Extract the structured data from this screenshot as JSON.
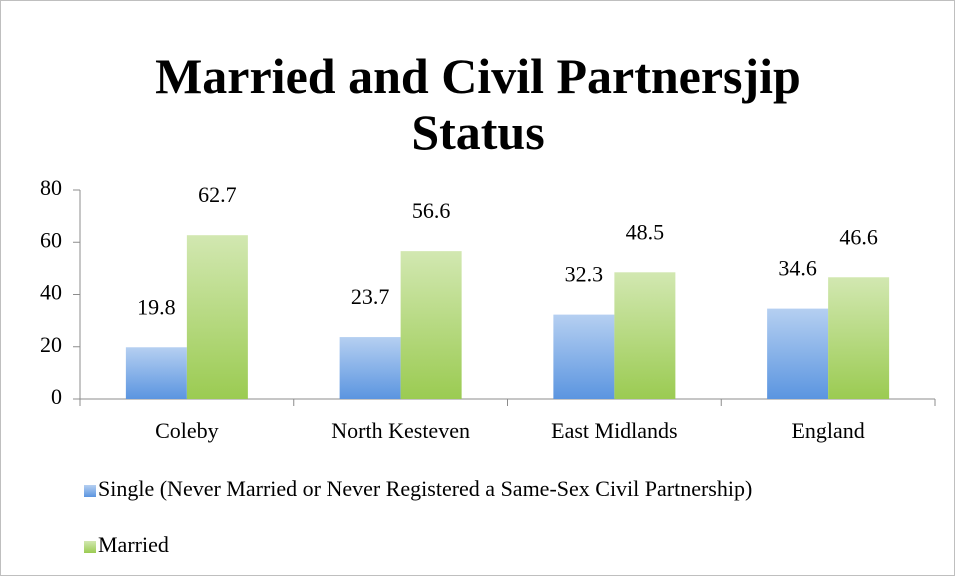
{
  "chart_data": {
    "type": "bar",
    "title": "Married and Civil Partnersjip Status",
    "categories": [
      "Coleby",
      "North Kesteven",
      "East Midlands",
      "England"
    ],
    "series": [
      {
        "name": "Single (Never Married or Never Registered a Same-Sex Civil Partnership)",
        "color": "#5b95e0",
        "values": [
          19.8,
          23.7,
          32.3,
          34.6
        ]
      },
      {
        "name": "Married",
        "color": "#9bcb52",
        "values": [
          62.7,
          56.6,
          48.5,
          46.6
        ]
      }
    ],
    "ylim": [
      0,
      80
    ],
    "yticks": [
      0,
      20,
      40,
      60,
      80
    ],
    "grid": false,
    "legend": "bottom"
  }
}
